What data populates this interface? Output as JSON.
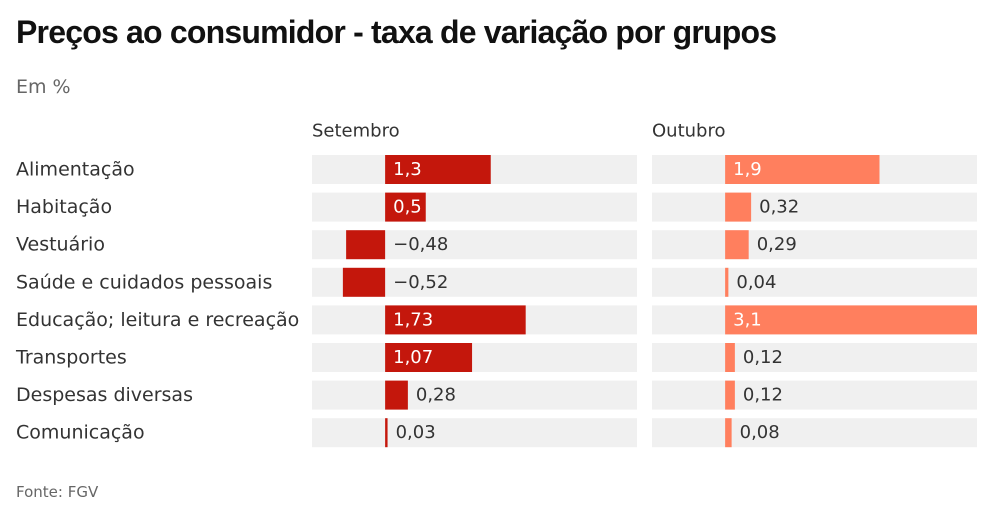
{
  "header": {
    "title": "Preços ao consumidor - taxa de variação por grupos",
    "subtitle": "Em %"
  },
  "footer": {
    "source": "Fonte: FGV"
  },
  "colors": {
    "setembro": "#c4170c",
    "outubro": "#ff7f5e",
    "track": "#f0f0f0",
    "label_inside": "#ffffff",
    "label_outside": "#333333"
  },
  "chart_data": {
    "type": "bar",
    "orientation": "horizontal",
    "grid": false,
    "categories": [
      "Alimentação",
      "Habitação",
      "Vestuário",
      "Saúde e cuidados pessoais",
      "Educação; leitura e recreação",
      "Transportes",
      "Despesas diversas",
      "Comunicação"
    ],
    "xlim": [
      -0.9,
      3.1
    ],
    "series": [
      {
        "name": "Setembro",
        "values": [
          1.3,
          0.5,
          -0.48,
          -0.52,
          1.73,
          1.07,
          0.28,
          0.03
        ],
        "labels": [
          "1,3",
          "0,5",
          "−0,48",
          "−0,52",
          "1,73",
          "1,07",
          "0,28",
          "0,03"
        ]
      },
      {
        "name": "Outubro",
        "values": [
          1.9,
          0.32,
          0.29,
          0.04,
          3.1,
          0.12,
          0.12,
          0.08
        ],
        "labels": [
          "1,9",
          "0,32",
          "0,29",
          "0,04",
          "3,1",
          "0,12",
          "0,12",
          "0,08"
        ]
      }
    ]
  }
}
